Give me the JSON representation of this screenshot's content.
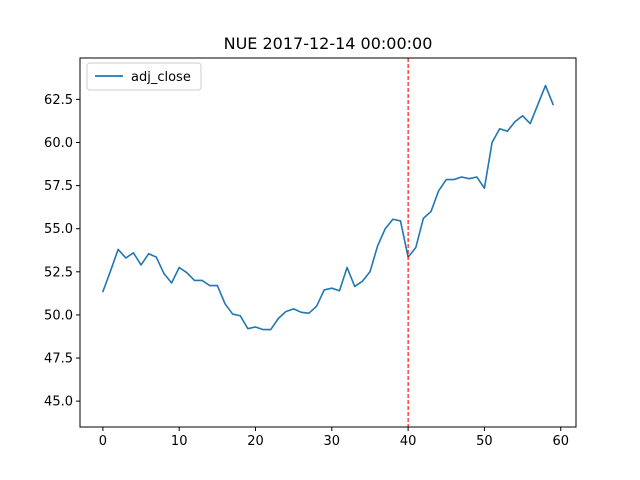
{
  "chart_data": {
    "type": "line",
    "title": "NUE 2017-12-14 00:00:00",
    "xlabel": "",
    "ylabel": "",
    "xlim": [
      -3,
      62
    ],
    "ylim": [
      43.5,
      64.9
    ],
    "xticks": [
      0,
      10,
      20,
      30,
      40,
      50,
      60
    ],
    "xtick_labels": [
      "0",
      "10",
      "20",
      "30",
      "40",
      "50",
      "60"
    ],
    "yticks": [
      45.0,
      47.5,
      50.0,
      52.5,
      55.0,
      57.5,
      60.0,
      62.5
    ],
    "ytick_labels": [
      "45.0",
      "47.5",
      "50.0",
      "52.5",
      "55.0",
      "57.5",
      "60.0",
      "62.5"
    ],
    "grid": false,
    "legend_position": "top-left",
    "series": [
      {
        "name": "adj_close",
        "color": "#1f77b4",
        "x": [
          0,
          1,
          2,
          3,
          4,
          5,
          6,
          7,
          8,
          9,
          10,
          11,
          12,
          13,
          14,
          15,
          16,
          17,
          18,
          19,
          20,
          21,
          22,
          23,
          24,
          25,
          26,
          27,
          28,
          29,
          30,
          31,
          32,
          33,
          34,
          35,
          36,
          37,
          38,
          39,
          40,
          41,
          42,
          43,
          44,
          45,
          46,
          47,
          48,
          49,
          50,
          51,
          52,
          53,
          54,
          55,
          56,
          57,
          58,
          59
        ],
        "values": [
          51.35,
          52.55,
          53.8,
          53.3,
          53.6,
          52.9,
          53.55,
          53.35,
          52.4,
          51.85,
          52.75,
          52.45,
          52.0,
          52.0,
          51.7,
          51.7,
          50.65,
          50.05,
          49.95,
          49.2,
          49.3,
          49.15,
          49.15,
          49.8,
          50.2,
          50.35,
          50.15,
          50.1,
          50.5,
          51.45,
          51.55,
          51.4,
          52.75,
          51.65,
          51.95,
          52.5,
          54.0,
          55.0,
          55.55,
          55.45,
          53.35,
          53.9,
          55.6,
          56.0,
          57.2,
          57.85,
          57.85,
          58.0,
          57.9,
          58.0,
          57.35,
          60.0,
          60.8,
          60.65,
          61.2,
          61.55,
          61.1,
          62.2,
          63.3,
          62.2
        ]
      }
    ],
    "vline": {
      "x": 40,
      "color": "#ff0000",
      "style": "dashed"
    }
  }
}
